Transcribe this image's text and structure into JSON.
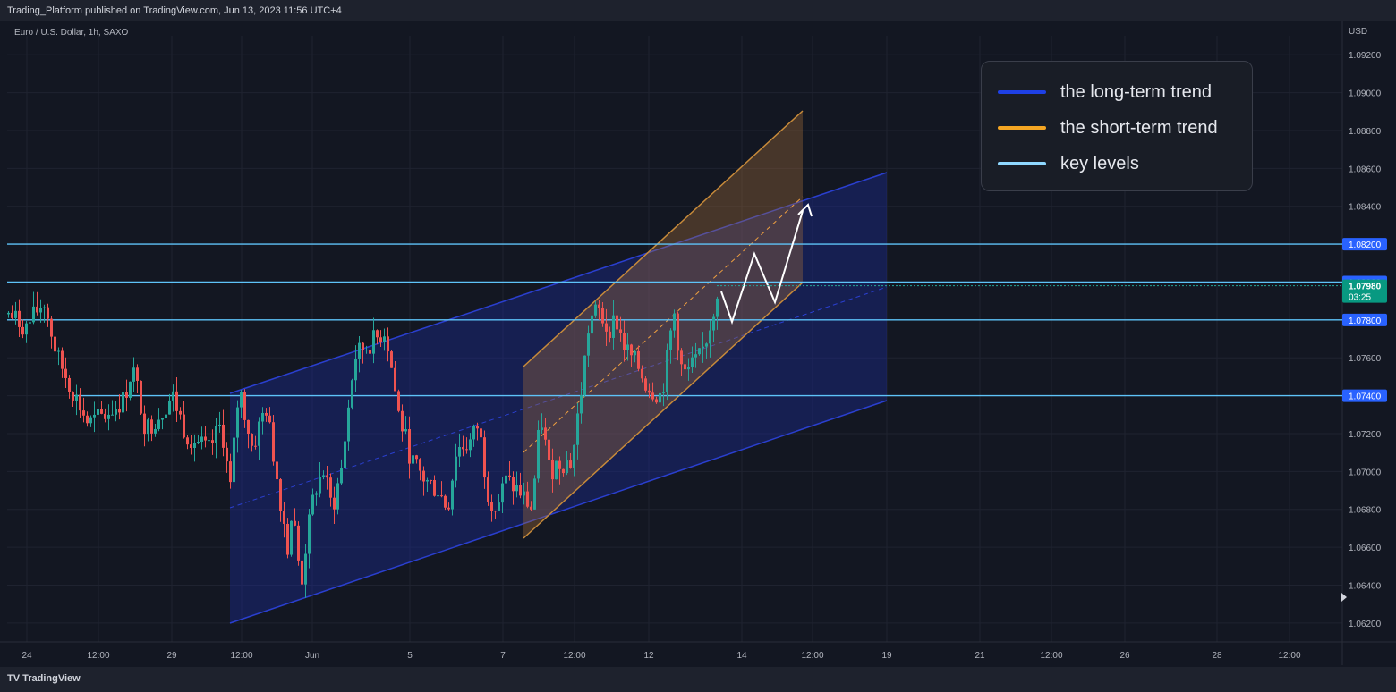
{
  "header": {
    "published_by": "Trading_Platform published on TradingView.com, Jun 13, 2023 11:56 UTC+4"
  },
  "symbol_label": "Euro / U.S. Dollar, 1h, SAXO",
  "currency_label": "USD",
  "footer": {
    "logo_text": "TradingView"
  },
  "legend": [
    {
      "label": "the long-term trend",
      "color": "#1e40e6"
    },
    {
      "label": "the short-term trend",
      "color": "#f5a623"
    },
    {
      "label": "key levels",
      "color": "#8fd8ff"
    }
  ],
  "chart_data": {
    "type": "candlestick",
    "ylim": [
      1.061,
      1.093
    ],
    "y_ticks": [
      "1.09200",
      "1.09000",
      "1.08800",
      "1.08600",
      "1.08400",
      "1.08200",
      "1.08000",
      "1.07800",
      "1.07600",
      "1.07400",
      "1.07200",
      "1.07000",
      "1.06800",
      "1.06600",
      "1.06400",
      "1.06200"
    ],
    "x_ticks": [
      "24",
      "12:00",
      "29",
      "12:00",
      "Jun",
      "5",
      "7",
      "12:00",
      "12",
      "14",
      "12:00",
      "19",
      "21",
      "12:00",
      "26",
      "28",
      "12:00"
    ],
    "key_levels": [
      1.082,
      1.08,
      1.078,
      1.074
    ],
    "key_level_labels": [
      "1.08200",
      "1.08000",
      "1.07800",
      "1.07400"
    ],
    "last_price": "1.07980",
    "countdown": "03:25",
    "colors": {
      "up": "#26a69a",
      "down": "#ef5350",
      "key_level": "#5ec3f8",
      "long_channel": "#2a3fcf",
      "short_channel": "#c78a3a",
      "price_badge": "#089981"
    },
    "close_path": [
      [
        0.0,
        1.0783
      ],
      [
        0.02,
        1.0776
      ],
      [
        0.04,
        1.079
      ],
      [
        0.055,
        1.076
      ],
      [
        0.07,
        1.0745
      ],
      [
        0.09,
        1.0725
      ],
      [
        0.11,
        1.073
      ],
      [
        0.13,
        1.0738
      ],
      [
        0.14,
        1.0755
      ],
      [
        0.155,
        1.0722
      ],
      [
        0.17,
        1.073
      ],
      [
        0.185,
        1.074
      ],
      [
        0.2,
        1.072
      ],
      [
        0.215,
        1.0715
      ],
      [
        0.225,
        1.071
      ],
      [
        0.24,
        1.0725
      ],
      [
        0.25,
        1.069
      ],
      [
        0.26,
        1.0745
      ],
      [
        0.275,
        1.0712
      ],
      [
        0.29,
        1.0735
      ],
      [
        0.305,
        1.069
      ],
      [
        0.315,
        1.066
      ],
      [
        0.32,
        1.068
      ],
      [
        0.33,
        1.064
      ],
      [
        0.335,
        1.066
      ],
      [
        0.345,
        1.069
      ],
      [
        0.355,
        1.07
      ],
      [
        0.365,
        1.068
      ],
      [
        0.375,
        1.07
      ],
      [
        0.39,
        1.076
      ],
      [
        0.4,
        1.0765
      ],
      [
        0.415,
        1.077
      ],
      [
        0.425,
        1.0775
      ],
      [
        0.43,
        1.076
      ],
      [
        0.44,
        1.073
      ],
      [
        0.455,
        1.0705
      ],
      [
        0.47,
        1.0695
      ],
      [
        0.485,
        1.069
      ],
      [
        0.495,
        1.068
      ],
      [
        0.505,
        1.0712
      ],
      [
        0.52,
        1.0715
      ],
      [
        0.53,
        1.0725
      ],
      [
        0.54,
        1.069
      ],
      [
        0.55,
        1.068
      ],
      [
        0.56,
        1.0695
      ],
      [
        0.575,
        1.069
      ],
      [
        0.59,
        1.068
      ],
      [
        0.6,
        1.073
      ],
      [
        0.61,
        1.07
      ],
      [
        0.62,
        1.0705
      ],
      [
        0.635,
        1.0705
      ],
      [
        0.645,
        1.074
      ],
      [
        0.655,
        1.078
      ],
      [
        0.665,
        1.0785
      ],
      [
        0.675,
        1.0775
      ],
      [
        0.685,
        1.078
      ],
      [
        0.695,
        1.0765
      ],
      [
        0.71,
        1.0755
      ],
      [
        0.72,
        1.0745
      ],
      [
        0.735,
        1.074
      ],
      [
        0.74,
        1.075
      ],
      [
        0.75,
        1.0785
      ],
      [
        0.76,
        1.075
      ],
      [
        0.77,
        1.0755
      ],
      [
        0.78,
        1.076
      ],
      [
        0.79,
        1.0775
      ],
      [
        0.8,
        1.0798
      ]
    ]
  }
}
